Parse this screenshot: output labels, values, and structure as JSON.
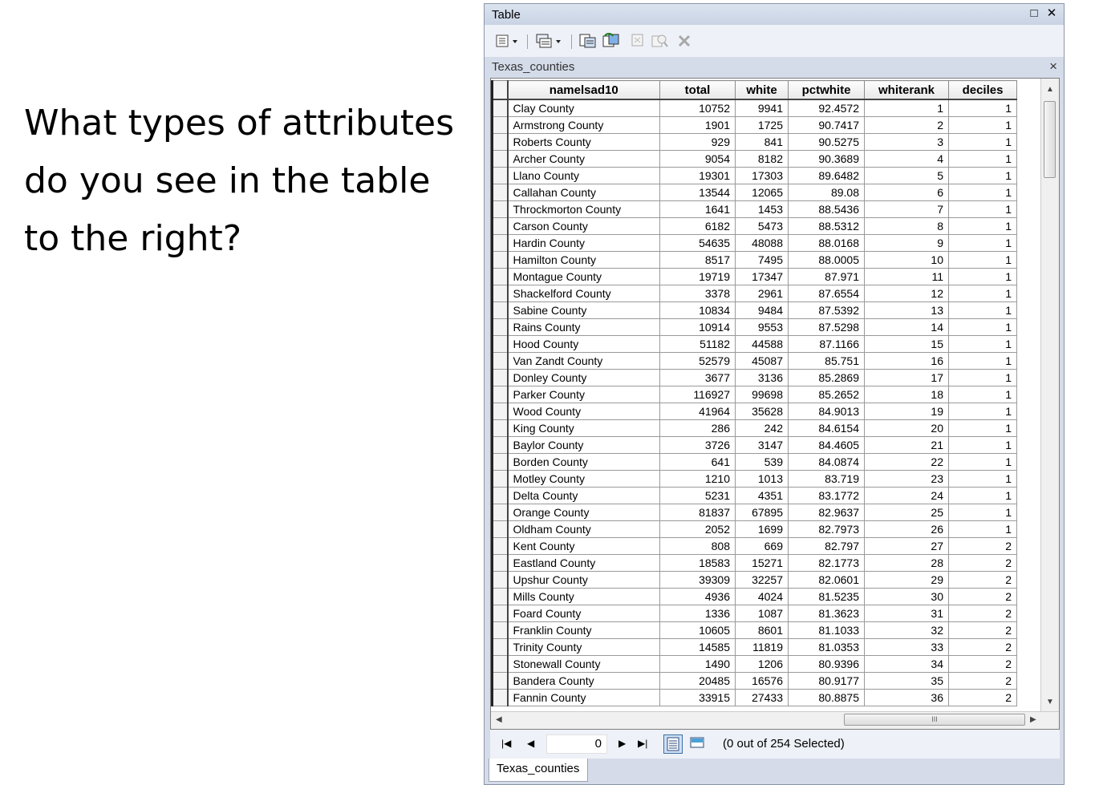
{
  "slide": {
    "lines": [
      "What types of attributes",
      "do you see in the table",
      "to the right?"
    ]
  },
  "window": {
    "title": "Table",
    "restore_glyph": "□",
    "close_glyph": "✕",
    "layer_tab": "Texas_counties",
    "bottom_tab": "Texas_counties"
  },
  "toolbar": {
    "icons": [
      "table-options-icon",
      "related-tables-icon",
      "select-by-attributes-icon",
      "switch-selection-icon",
      "clear-selection-icon",
      "zoom-to-selected-icon",
      "delete-selected-icon"
    ]
  },
  "table": {
    "columns": [
      "namelsad10",
      "total",
      "white",
      "pctwhite",
      "whiterank",
      "deciles"
    ],
    "rows": [
      [
        "Clay County",
        "10752",
        "9941",
        "92.4572",
        "1",
        "1"
      ],
      [
        "Armstrong County",
        "1901",
        "1725",
        "90.7417",
        "2",
        "1"
      ],
      [
        "Roberts County",
        "929",
        "841",
        "90.5275",
        "3",
        "1"
      ],
      [
        "Archer County",
        "9054",
        "8182",
        "90.3689",
        "4",
        "1"
      ],
      [
        "Llano County",
        "19301",
        "17303",
        "89.6482",
        "5",
        "1"
      ],
      [
        "Callahan County",
        "13544",
        "12065",
        "89.08",
        "6",
        "1"
      ],
      [
        "Throckmorton County",
        "1641",
        "1453",
        "88.5436",
        "7",
        "1"
      ],
      [
        "Carson County",
        "6182",
        "5473",
        "88.5312",
        "8",
        "1"
      ],
      [
        "Hardin County",
        "54635",
        "48088",
        "88.0168",
        "9",
        "1"
      ],
      [
        "Hamilton County",
        "8517",
        "7495",
        "88.0005",
        "10",
        "1"
      ],
      [
        "Montague County",
        "19719",
        "17347",
        "87.971",
        "11",
        "1"
      ],
      [
        "Shackelford County",
        "3378",
        "2961",
        "87.6554",
        "12",
        "1"
      ],
      [
        "Sabine County",
        "10834",
        "9484",
        "87.5392",
        "13",
        "1"
      ],
      [
        "Rains County",
        "10914",
        "9553",
        "87.5298",
        "14",
        "1"
      ],
      [
        "Hood County",
        "51182",
        "44588",
        "87.1166",
        "15",
        "1"
      ],
      [
        "Van Zandt County",
        "52579",
        "45087",
        "85.751",
        "16",
        "1"
      ],
      [
        "Donley County",
        "3677",
        "3136",
        "85.2869",
        "17",
        "1"
      ],
      [
        "Parker County",
        "116927",
        "99698",
        "85.2652",
        "18",
        "1"
      ],
      [
        "Wood County",
        "41964",
        "35628",
        "84.9013",
        "19",
        "1"
      ],
      [
        "King County",
        "286",
        "242",
        "84.6154",
        "20",
        "1"
      ],
      [
        "Baylor County",
        "3726",
        "3147",
        "84.4605",
        "21",
        "1"
      ],
      [
        "Borden County",
        "641",
        "539",
        "84.0874",
        "22",
        "1"
      ],
      [
        "Motley County",
        "1210",
        "1013",
        "83.719",
        "23",
        "1"
      ],
      [
        "Delta County",
        "5231",
        "4351",
        "83.1772",
        "24",
        "1"
      ],
      [
        "Orange County",
        "81837",
        "67895",
        "82.9637",
        "25",
        "1"
      ],
      [
        "Oldham County",
        "2052",
        "1699",
        "82.7973",
        "26",
        "1"
      ],
      [
        "Kent County",
        "808",
        "669",
        "82.797",
        "27",
        "2"
      ],
      [
        "Eastland County",
        "18583",
        "15271",
        "82.1773",
        "28",
        "2"
      ],
      [
        "Upshur County",
        "39309",
        "32257",
        "82.0601",
        "29",
        "2"
      ],
      [
        "Mills County",
        "4936",
        "4024",
        "81.5235",
        "30",
        "2"
      ],
      [
        "Foard County",
        "1336",
        "1087",
        "81.3623",
        "31",
        "2"
      ],
      [
        "Franklin County",
        "10605",
        "8601",
        "81.1033",
        "32",
        "2"
      ],
      [
        "Trinity County",
        "14585",
        "11819",
        "81.0353",
        "33",
        "2"
      ],
      [
        "Stonewall County",
        "1490",
        "1206",
        "80.9396",
        "34",
        "2"
      ],
      [
        "Bandera County",
        "20485",
        "16576",
        "80.9177",
        "35",
        "2"
      ],
      [
        "Fannin County",
        "33915",
        "27433",
        "80.8875",
        "36",
        "2"
      ]
    ]
  },
  "navigation": {
    "record": "0",
    "status": "(0 out of 254 Selected)"
  },
  "scrollbar": {
    "hthumb_glyph": "III"
  }
}
